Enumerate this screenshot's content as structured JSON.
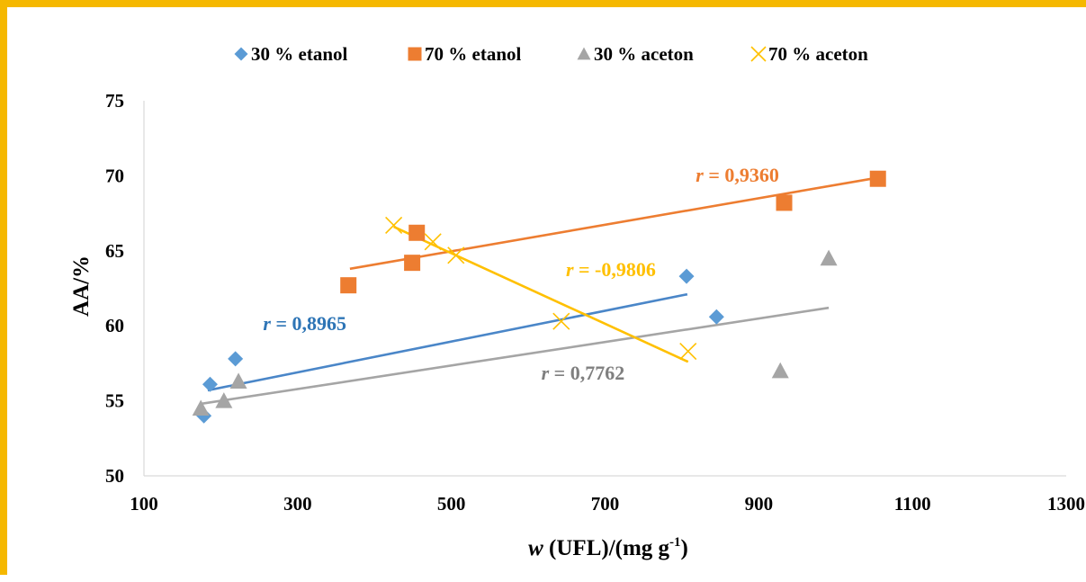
{
  "chart_data": {
    "type": "scatter",
    "xlabel_italic": "w",
    "xlabel_rest": " (UFL)/(mg g",
    "xlabel_sup": "-1",
    "xlabel_end": ")",
    "ylabel": "AA/%",
    "xlim": [
      100,
      1300
    ],
    "ylim": [
      50,
      75
    ],
    "xticks": [
      "100",
      "300",
      "500",
      "700",
      "900",
      "1100",
      "1300"
    ],
    "yticks": [
      "50",
      "55",
      "60",
      "65",
      "70",
      "75"
    ],
    "grid": false,
    "legend_position": "top",
    "series": [
      {
        "name": "30 % etanol",
        "marker": "diamond",
        "color": "#5b9bd5",
        "line_color": "#4a86c8",
        "points": [
          [
            178,
            54
          ],
          [
            186,
            56.1
          ],
          [
            219,
            57.8
          ],
          [
            806,
            63.3
          ],
          [
            845,
            60.6
          ]
        ],
        "trend": [
          [
            183,
            55.7
          ],
          [
            807,
            62.1
          ]
        ],
        "r_label_italic": "r",
        "r_label_value": " = 0,8965",
        "r_label_color": "#2e75b6",
        "r_label_at": [
          255,
          59.7
        ]
      },
      {
        "name": "70 % etanol",
        "marker": "square",
        "color": "#ed7d31",
        "line_color": "#ed7d31",
        "points": [
          [
            366,
            62.7
          ],
          [
            449,
            64.2
          ],
          [
            455,
            66.2
          ],
          [
            933,
            68.2
          ],
          [
            1055,
            69.8
          ]
        ],
        "trend": [
          [
            368,
            63.8
          ],
          [
            1058,
            69.9
          ]
        ],
        "r_label_italic": "r",
        "r_label_value": " = 0,9360",
        "r_label_color": "#ed7d31",
        "r_label_at": [
          818,
          69.6
        ]
      },
      {
        "name": "30 % aceton",
        "marker": "triangle",
        "color": "#a5a5a5",
        "line_color": "#a5a5a5",
        "points": [
          [
            174,
            54.5
          ],
          [
            204,
            55
          ],
          [
            223,
            56.3
          ],
          [
            928,
            57
          ],
          [
            991,
            64.5
          ]
        ],
        "trend": [
          [
            174,
            54.8
          ],
          [
            991,
            61.2
          ]
        ],
        "r_label_italic": "r",
        "r_label_value": " = 0,7762",
        "r_label_color": "#7f7f7f",
        "r_label_at": [
          617,
          56.4
        ]
      },
      {
        "name": "70 % aceton",
        "marker": "x",
        "color": "#ffc000",
        "line_color": "#ffc000",
        "points": [
          [
            425,
            66.7
          ],
          [
            476,
            65.6
          ],
          [
            506,
            64.7
          ],
          [
            643,
            60.3
          ],
          [
            808,
            58.3
          ]
        ],
        "trend": [
          [
            425,
            66.6
          ],
          [
            808,
            57.6
          ]
        ],
        "r_label_italic": "r",
        "r_label_value": " = -0,9806",
        "r_label_color": "#ffc000",
        "r_label_at": [
          649,
          63.3
        ]
      }
    ]
  }
}
